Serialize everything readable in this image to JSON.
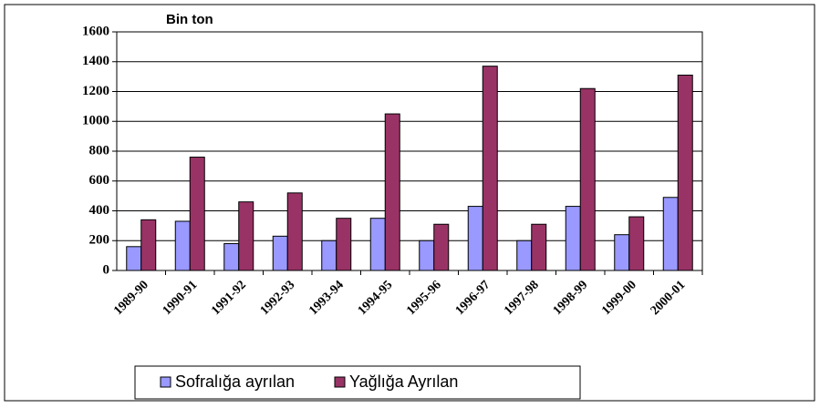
{
  "chart_data": {
    "type": "bar",
    "title": "Bin ton",
    "categories": [
      "1989-90",
      "1990-91",
      "1991-92",
      "1992-93",
      "1993-94",
      "1994-95",
      "1995-96",
      "1996-97",
      "1997-98",
      "1998-99",
      "1999-00",
      "2000-01"
    ],
    "series": [
      {
        "name": "Sofralığa ayrılan",
        "color": "#9999ff",
        "values": [
          160,
          330,
          180,
          230,
          200,
          350,
          200,
          430,
          200,
          430,
          240,
          490
        ]
      },
      {
        "name": "Yağlığa Ayrılan",
        "color": "#993366",
        "values": [
          340,
          760,
          460,
          520,
          350,
          1050,
          310,
          1370,
          310,
          1220,
          360,
          1310
        ]
      }
    ],
    "ylim": [
      0,
      1600
    ],
    "yticks": [
      0,
      200,
      400,
      600,
      800,
      1000,
      1200,
      1400,
      1600
    ],
    "grid": true
  }
}
